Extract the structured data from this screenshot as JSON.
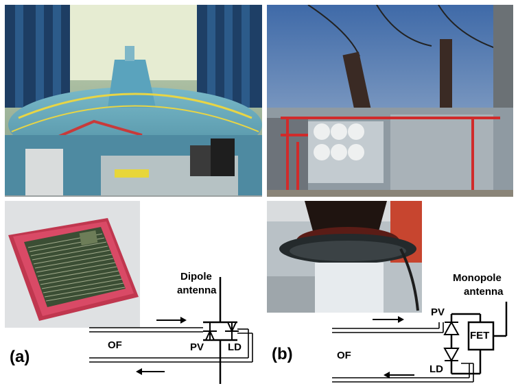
{
  "photos": {
    "top_left": "hydro-generator-hall-photo",
    "top_right": "substation-transformer-photo",
    "mid_left": "sensor-chip-photo",
    "mid_right": "insulator-bushing-photo"
  },
  "panel_a": {
    "tag": "(a)",
    "antenna_line1": "Dipole",
    "antenna_line2": "antenna",
    "of": "OF",
    "pv": "PV",
    "ld": "LD"
  },
  "panel_b": {
    "tag": "(b)",
    "antenna_line1": "Monopole",
    "antenna_line2": "antenna",
    "of": "OF",
    "pv": "PV",
    "ld": "LD",
    "fet": "FET"
  }
}
